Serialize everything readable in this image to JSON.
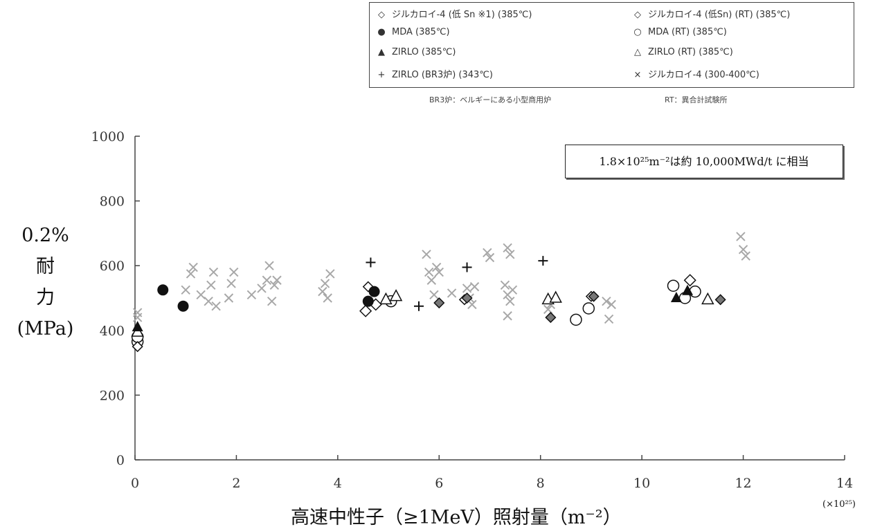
{
  "legend": {
    "items": [
      {
        "text": "ジルカロイ-4 (低 Sn ※1) (385℃)",
        "marker": "diamond-open-small"
      },
      {
        "text": "ジルカロイ-4 (低Sn) (RT) (385℃)",
        "marker": "diamond-open"
      },
      {
        "text": "MDA (385℃)",
        "marker": "circle-filled"
      },
      {
        "text": "MDA (RT) (385℃)",
        "marker": "circle-open"
      },
      {
        "text": "ZIRLO (385℃)",
        "marker": "triangle-filled"
      },
      {
        "text": "ZIRLO (RT) (385℃)",
        "marker": "triangle-open"
      },
      {
        "text": "ZIRLO (BR3炉) (343℃)",
        "marker": "plus"
      },
      {
        "text": "ジルカロイ-4 (300-400℃)",
        "marker": "cross"
      }
    ],
    "notes": [
      "BR3炉：ベルギーにある小型商用炉",
      "RT：異合計試験所"
    ]
  },
  "ylabel_lines": [
    "0.2%",
    "耐",
    "力",
    "(MPa)"
  ],
  "xlabel": "高速中性子（≥1MeV）照射量（m⁻²）",
  "x_multiplier": "(×10²⁵)",
  "annotation": "1.8×10²⁵m⁻²は約 10,000MWd/t に相当",
  "colors": {
    "axis": "#444444",
    "cross": "#a8a8a8",
    "plus": "#666666",
    "black": "#111111",
    "grey_fill": "#777777"
  },
  "chart_data": {
    "type": "scatter",
    "xlabel": "高速中性子（≥1MeV）照射量（m⁻²）",
    "ylabel": "0.2% 耐力 (MPa)",
    "xlim": [
      0,
      14
    ],
    "ylim": [
      0,
      1000
    ],
    "xticks": [
      0,
      2,
      4,
      6,
      8,
      10,
      12,
      14
    ],
    "yticks": [
      0,
      200,
      400,
      600,
      800,
      1000
    ],
    "series": [
      {
        "name": "ジルカロイ-4 (低 Sn ※1) (385℃)",
        "marker": "diamond-open-small",
        "points": [
          [
            0.05,
            350
          ],
          [
            4.6,
            535
          ],
          [
            6.5,
            495
          ],
          [
            9.0,
            505
          ]
        ]
      },
      {
        "name": "ジルカロイ-4 (低Sn) (RT) (385℃)",
        "marker": "diamond-open",
        "points": [
          [
            4.55,
            460
          ],
          [
            4.75,
            480
          ],
          [
            10.95,
            555
          ]
        ]
      },
      {
        "name": "MDA (385℃)",
        "marker": "circle-filled",
        "points": [
          [
            0.55,
            525
          ],
          [
            0.95,
            475
          ],
          [
            4.6,
            490
          ],
          [
            4.72,
            520
          ]
        ]
      },
      {
        "name": "MDA (RT) (385℃)",
        "marker": "circle-open",
        "points": [
          [
            0.05,
            365
          ],
          [
            0.05,
            380
          ],
          [
            5.05,
            490
          ],
          [
            8.7,
            433
          ],
          [
            8.95,
            468
          ],
          [
            10.62,
            538
          ],
          [
            10.85,
            500
          ],
          [
            11.05,
            520
          ]
        ]
      },
      {
        "name": "ZIRLO (385℃)",
        "marker": "triangle-filled",
        "points": [
          [
            0.05,
            410
          ],
          [
            10.68,
            500
          ],
          [
            10.9,
            522
          ]
        ]
      },
      {
        "name": "ZIRLO (RT) (385℃)",
        "marker": "triangle-open",
        "points": [
          [
            0.05,
            395
          ],
          [
            4.95,
            495
          ],
          [
            5.15,
            505
          ],
          [
            8.15,
            495
          ],
          [
            8.3,
            500
          ],
          [
            11.3,
            495
          ]
        ]
      },
      {
        "name": "ZIRLO (BR3炉) (343℃)",
        "marker": "plus",
        "points": [
          [
            4.65,
            610
          ],
          [
            6.55,
            595
          ],
          [
            8.05,
            615
          ],
          [
            5.6,
            475
          ]
        ]
      },
      {
        "name": "ジルカロイ-4 (300-400℃)",
        "marker": "cross",
        "points": [
          [
            0.05,
            455
          ],
          [
            0.05,
            440
          ],
          [
            1.0,
            525
          ],
          [
            1.1,
            575
          ],
          [
            1.15,
            595
          ],
          [
            1.3,
            510
          ],
          [
            1.45,
            490
          ],
          [
            1.5,
            540
          ],
          [
            1.55,
            580
          ],
          [
            1.6,
            475
          ],
          [
            1.85,
            500
          ],
          [
            1.9,
            545
          ],
          [
            1.95,
            580
          ],
          [
            2.3,
            510
          ],
          [
            2.5,
            530
          ],
          [
            2.6,
            555
          ],
          [
            2.65,
            600
          ],
          [
            2.7,
            490
          ],
          [
            2.75,
            540
          ],
          [
            2.8,
            555
          ],
          [
            3.7,
            520
          ],
          [
            3.75,
            545
          ],
          [
            3.8,
            500
          ],
          [
            3.85,
            575
          ],
          [
            5.75,
            635
          ],
          [
            5.8,
            580
          ],
          [
            5.85,
            555
          ],
          [
            5.9,
            510
          ],
          [
            5.95,
            595
          ],
          [
            6.0,
            580
          ],
          [
            6.25,
            515
          ],
          [
            6.55,
            530
          ],
          [
            6.6,
            500
          ],
          [
            6.65,
            480
          ],
          [
            6.7,
            535
          ],
          [
            6.95,
            640
          ],
          [
            7.0,
            625
          ],
          [
            7.35,
            655
          ],
          [
            7.4,
            635
          ],
          [
            7.3,
            540
          ],
          [
            7.35,
            510
          ],
          [
            7.4,
            490
          ],
          [
            7.45,
            525
          ],
          [
            7.35,
            445
          ],
          [
            8.15,
            465
          ],
          [
            8.2,
            480
          ],
          [
            9.3,
            490
          ],
          [
            9.35,
            435
          ],
          [
            9.4,
            480
          ],
          [
            11.95,
            690
          ],
          [
            12.0,
            650
          ],
          [
            12.05,
            630
          ]
        ]
      },
      {
        "name": "",
        "marker": "diamond-filled-grey",
        "points": [
          [
            6.0,
            485
          ],
          [
            6.55,
            500
          ],
          [
            8.2,
            440
          ],
          [
            9.05,
            505
          ],
          [
            11.55,
            495
          ]
        ]
      }
    ]
  }
}
